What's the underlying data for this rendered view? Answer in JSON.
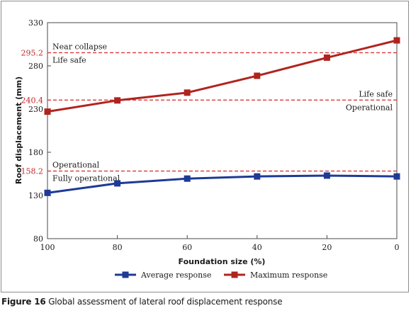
{
  "chart_data": {
    "type": "line",
    "x": [
      100,
      80,
      60,
      40,
      20,
      0
    ],
    "xlim": [
      100,
      0
    ],
    "ylim": [
      80,
      330
    ],
    "xticks": [
      "100",
      "80",
      "60",
      "40",
      "20",
      "0"
    ],
    "yticks": [
      "80",
      "130",
      "180",
      "230",
      "280",
      "330"
    ],
    "xlabel": "Foundation size (%)",
    "ylabel": "Roof displacement (mm)",
    "grid": false,
    "legend_position": "bottom",
    "series": [
      {
        "name": "Average response",
        "values": [
          133,
          144,
          149.5,
          152,
          153,
          152
        ],
        "color": "#1e3a96",
        "marker": "square"
      },
      {
        "name": "Maximum response",
        "values": [
          227,
          240,
          249,
          268.5,
          289.5,
          309.5
        ],
        "color": "#b0241e",
        "marker": "square"
      }
    ],
    "thresholds": [
      {
        "value": 295.2,
        "label": "295.2",
        "above": "Near collapse",
        "below": "Life safe",
        "side": "left"
      },
      {
        "value": 240.4,
        "label": "240.4",
        "above": "Life safe",
        "below": "Operational",
        "side": "right"
      },
      {
        "value": 158.2,
        "label": "158.2",
        "above": "Operational",
        "below": "Fully operational",
        "side": "left"
      }
    ],
    "threshold_color": "#d8383a"
  },
  "caption": {
    "number": "Figure 16",
    "text": "Global assessment of lateral roof displacement response"
  }
}
